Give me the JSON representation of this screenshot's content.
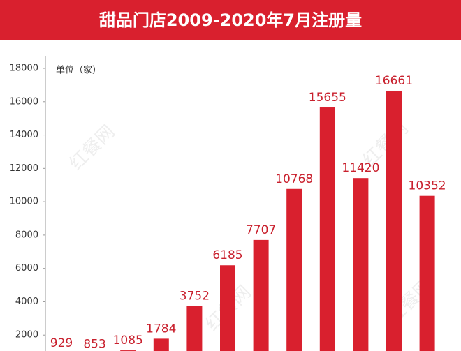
{
  "chart_data": {
    "type": "bar",
    "title": "甜品门店2009-2020年7月注册量",
    "unit_label": "单位（家）",
    "watermark": "红餐网",
    "categories": [
      null,
      null,
      null,
      null,
      null,
      null,
      null,
      null,
      null,
      null,
      null,
      null
    ],
    "values": [
      929,
      853,
      1085,
      1784,
      3752,
      6185,
      7707,
      10768,
      15655,
      11420,
      16661,
      10352
    ],
    "color": "#d9202e",
    "ylim": [
      0,
      18000
    ],
    "yticks": [
      2000,
      4000,
      6000,
      8000,
      10000,
      12000,
      14000,
      16000,
      18000
    ],
    "grid": false
  }
}
